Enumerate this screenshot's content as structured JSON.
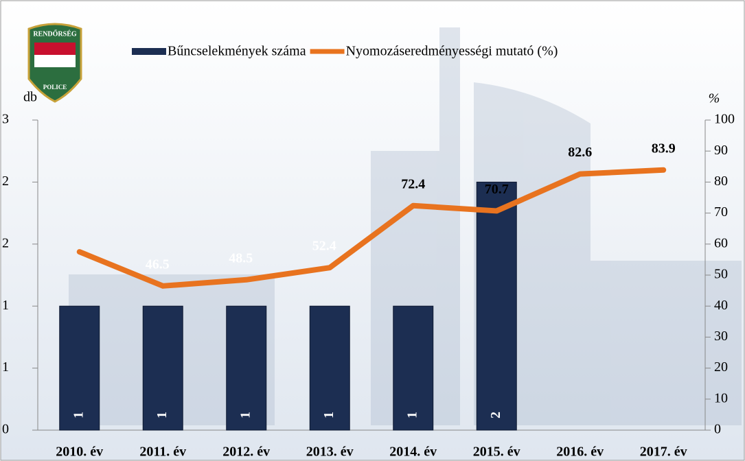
{
  "logo": {
    "top": "RENDŐRSÉG",
    "bottom": "POLICE"
  },
  "chart_data": {
    "type": "combo",
    "categories": [
      "2010. év",
      "2011. év",
      "2012. év",
      "2013. év",
      "2014. év",
      "2015. év",
      "2016. év",
      "2017. év"
    ],
    "series": [
      {
        "name": "Bűncselekmények száma",
        "type": "bar",
        "color": "#1c2e52",
        "values": [
          1,
          1,
          1,
          1,
          1,
          2,
          null,
          null
        ]
      },
      {
        "name": "Nyomozáseredményességi mutató (%)",
        "type": "line",
        "axis": "y2",
        "color": "#e8731f",
        "values": [
          57.5,
          46.5,
          48.5,
          52.4,
          72.4,
          70.7,
          82.6,
          83.9
        ],
        "value_labels": [
          null,
          "46.5",
          "48.5",
          "52.4",
          "72.4",
          "70.7",
          "82.6",
          "83.9"
        ]
      }
    ],
    "ylabel": "db",
    "y2label": "%",
    "ylim": [
      0,
      2.5
    ],
    "yticks": [
      0,
      {
        "value": 0.5,
        "label": "1"
      },
      1,
      {
        "value": 1.5,
        "label": "2"
      },
      2,
      {
        "value": 2.5,
        "label": "3"
      }
    ],
    "y2lim": [
      0,
      100
    ],
    "y2ticks": [
      0,
      10,
      20,
      30,
      40,
      50,
      60,
      70,
      80,
      90,
      100
    ],
    "legend": "top"
  }
}
